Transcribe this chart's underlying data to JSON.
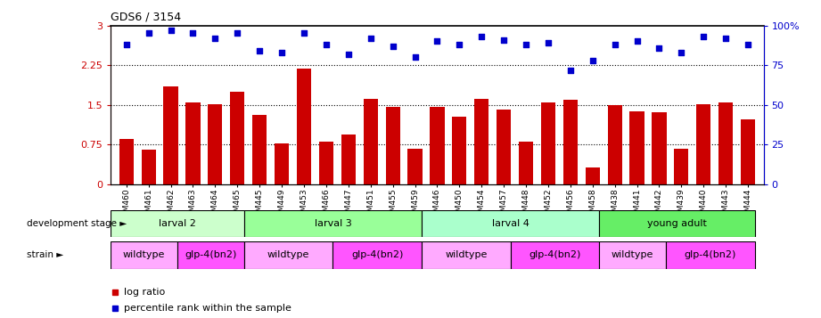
{
  "title": "GDS6 / 3154",
  "samples": [
    "GSM460",
    "GSM461",
    "GSM462",
    "GSM463",
    "GSM464",
    "GSM465",
    "GSM445",
    "GSM449",
    "GSM453",
    "GSM466",
    "GSM447",
    "GSM451",
    "GSM455",
    "GSM459",
    "GSM446",
    "GSM450",
    "GSM454",
    "GSM457",
    "GSM448",
    "GSM452",
    "GSM456",
    "GSM458",
    "GSM438",
    "GSM441",
    "GSM442",
    "GSM439",
    "GSM440",
    "GSM443",
    "GSM444"
  ],
  "log_ratio": [
    0.85,
    0.65,
    1.85,
    1.55,
    1.52,
    1.75,
    1.32,
    0.78,
    2.18,
    0.8,
    0.95,
    1.62,
    1.47,
    0.68,
    1.47,
    1.27,
    1.62,
    1.42,
    0.8,
    1.55,
    1.6,
    0.32,
    1.5,
    1.38,
    1.37,
    0.68,
    1.52,
    1.55,
    1.22
  ],
  "percentile": [
    88,
    95,
    97,
    95,
    92,
    95,
    84,
    83,
    95,
    88,
    82,
    92,
    87,
    80,
    90,
    88,
    93,
    91,
    88,
    89,
    72,
    78,
    88,
    90,
    86,
    83,
    93,
    92,
    88
  ],
  "dev_stages": [
    {
      "label": "larval 2",
      "start": 0,
      "end": 6,
      "color": "#ccffcc"
    },
    {
      "label": "larval 3",
      "start": 6,
      "end": 14,
      "color": "#99ff99"
    },
    {
      "label": "larval 4",
      "start": 14,
      "end": 22,
      "color": "#aaffcc"
    },
    {
      "label": "young adult",
      "start": 22,
      "end": 29,
      "color": "#66ee66"
    }
  ],
  "strains": [
    {
      "label": "wildtype",
      "start": 0,
      "end": 3,
      "color": "#ffaaff"
    },
    {
      "label": "glp-4(bn2)",
      "start": 3,
      "end": 6,
      "color": "#ff55ff"
    },
    {
      "label": "wildtype",
      "start": 6,
      "end": 10,
      "color": "#ffaaff"
    },
    {
      "label": "glp-4(bn2)",
      "start": 10,
      "end": 14,
      "color": "#ff55ff"
    },
    {
      "label": "wildtype",
      "start": 14,
      "end": 18,
      "color": "#ffaaff"
    },
    {
      "label": "glp-4(bn2)",
      "start": 18,
      "end": 22,
      "color": "#ff55ff"
    },
    {
      "label": "wildtype",
      "start": 22,
      "end": 25,
      "color": "#ffaaff"
    },
    {
      "label": "glp-4(bn2)",
      "start": 25,
      "end": 29,
      "color": "#ff55ff"
    }
  ],
  "bar_color": "#cc0000",
  "dot_color": "#0000cc",
  "ylim_left": [
    0,
    3.0
  ],
  "ylim_right": [
    0,
    100
  ],
  "yticks_left": [
    0,
    0.75,
    1.5,
    2.25,
    3.0
  ],
  "yticks_right": [
    0,
    25,
    50,
    75,
    100
  ],
  "hlines": [
    0.75,
    1.5,
    2.25
  ],
  "legend_log_ratio": "log ratio",
  "legend_percentile": "percentile rank within the sample",
  "dev_stage_label": "development stage",
  "strain_label": "strain"
}
